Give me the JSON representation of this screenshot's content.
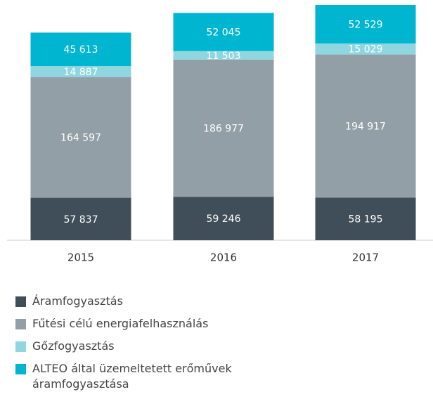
{
  "chart_data": {
    "type": "bar",
    "stacked": true,
    "categories": [
      "2015",
      "2016",
      "2017"
    ],
    "series": [
      {
        "name": "Áramfogyasztás",
        "color": "#3f4e59",
        "values": [
          57837,
          59246,
          58195
        ],
        "value_labels": [
          "57 837",
          "59 246",
          "58 195"
        ]
      },
      {
        "name": "Fűtési célú energiafelhasználás",
        "color": "#939fa6",
        "values": [
          164597,
          186977,
          194917
        ],
        "value_labels": [
          "164 597",
          "186 977",
          "194 917"
        ]
      },
      {
        "name": "Gőzfogyasztás",
        "color": "#8fd6e1",
        "values": [
          14887,
          11503,
          15029
        ],
        "value_labels": [
          "14 887",
          "11 503",
          "15 029"
        ]
      },
      {
        "name": "ALTEO által üzemeltetett erőművek áramfogyasztása",
        "color": "#00b5cf",
        "values": [
          45613,
          52045,
          52529
        ],
        "value_labels": [
          "45 613",
          "52 045",
          "52 529"
        ]
      }
    ]
  }
}
